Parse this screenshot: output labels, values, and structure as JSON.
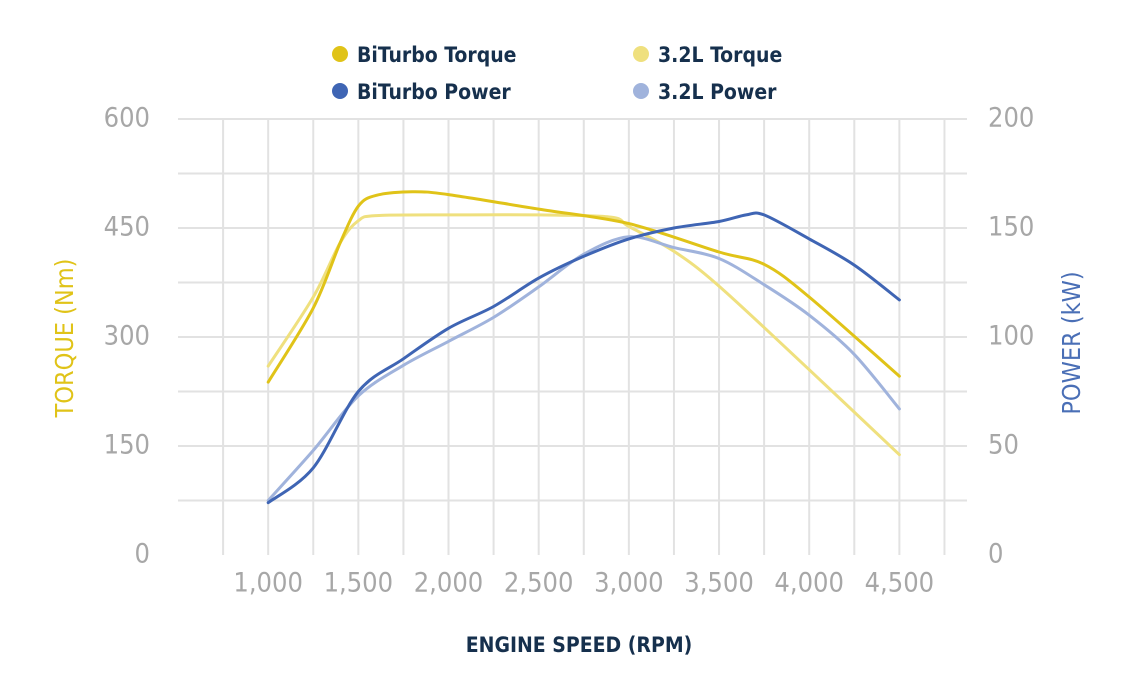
{
  "chart_data": {
    "type": "line",
    "xlabel": "ENGINE SPEED (RPM)",
    "ylabel_left": "TORQUE (Nm)",
    "ylabel_right": "POWER (kW)",
    "x_ticks": [
      "1,000",
      "1,500",
      "2,000",
      "2,500",
      "3,000",
      "3,500",
      "4,000",
      "4,500"
    ],
    "y_left_ticks": [
      "0",
      "150",
      "300",
      "450",
      "600"
    ],
    "y_right_ticks": [
      "0",
      "50",
      "100",
      "150",
      "200"
    ],
    "xlim": [
      500,
      4875
    ],
    "ylim_left": [
      0,
      600
    ],
    "ylim_right": [
      0,
      200
    ],
    "grid": true,
    "legend_position": "top",
    "colors": {
      "biturbo_torque": "#e0c318",
      "torque_32": "#efe07e",
      "biturbo_power": "#3f65b4",
      "power_32": "#a0b3dc",
      "left_axis": "#e0c318",
      "right_axis": "#4a6fb6",
      "tick": "#a7a7a7",
      "grid": "#e2e2e2"
    },
    "series": [
      {
        "name": "BiTurbo Torque",
        "axis": "left",
        "color": "#e0c318",
        "x": [
          1000,
          1250,
          1400,
          1500,
          1600,
          1800,
          2000,
          2500,
          3000,
          3500,
          3750,
          4000,
          4500
        ],
        "y": [
          238,
          340,
          430,
          480,
          495,
          500,
          496,
          476,
          456,
          417,
          400,
          355,
          246
        ]
      },
      {
        "name": "3.2L Torque",
        "axis": "left",
        "color": "#efe07e",
        "x": [
          1000,
          1250,
          1400,
          1500,
          1600,
          2000,
          2500,
          2900,
          3000,
          3250,
          3500,
          4000,
          4500
        ],
        "y": [
          260,
          355,
          430,
          460,
          467,
          468,
          468,
          465,
          452,
          418,
          370,
          255,
          138
        ]
      },
      {
        "name": "BiTurbo Power",
        "axis": "right",
        "color": "#3f65b4",
        "x": [
          1000,
          1250,
          1500,
          1750,
          2000,
          2250,
          2500,
          2750,
          3000,
          3250,
          3500,
          3650,
          3750,
          4000,
          4250,
          4500
        ],
        "y": [
          24,
          40,
          75,
          90,
          104,
          114,
          127,
          137,
          145,
          150,
          153,
          156,
          156,
          145,
          133,
          117
        ]
      },
      {
        "name": "3.2L Power",
        "axis": "right",
        "color": "#a0b3dc",
        "x": [
          1000,
          1250,
          1500,
          1750,
          2000,
          2250,
          2500,
          2750,
          3000,
          3250,
          3500,
          3750,
          4000,
          4250,
          4500
        ],
        "y": [
          25,
          48,
          73,
          87,
          98,
          109,
          123,
          138,
          146,
          141,
          136,
          124,
          110,
          92,
          67
        ]
      }
    ]
  }
}
